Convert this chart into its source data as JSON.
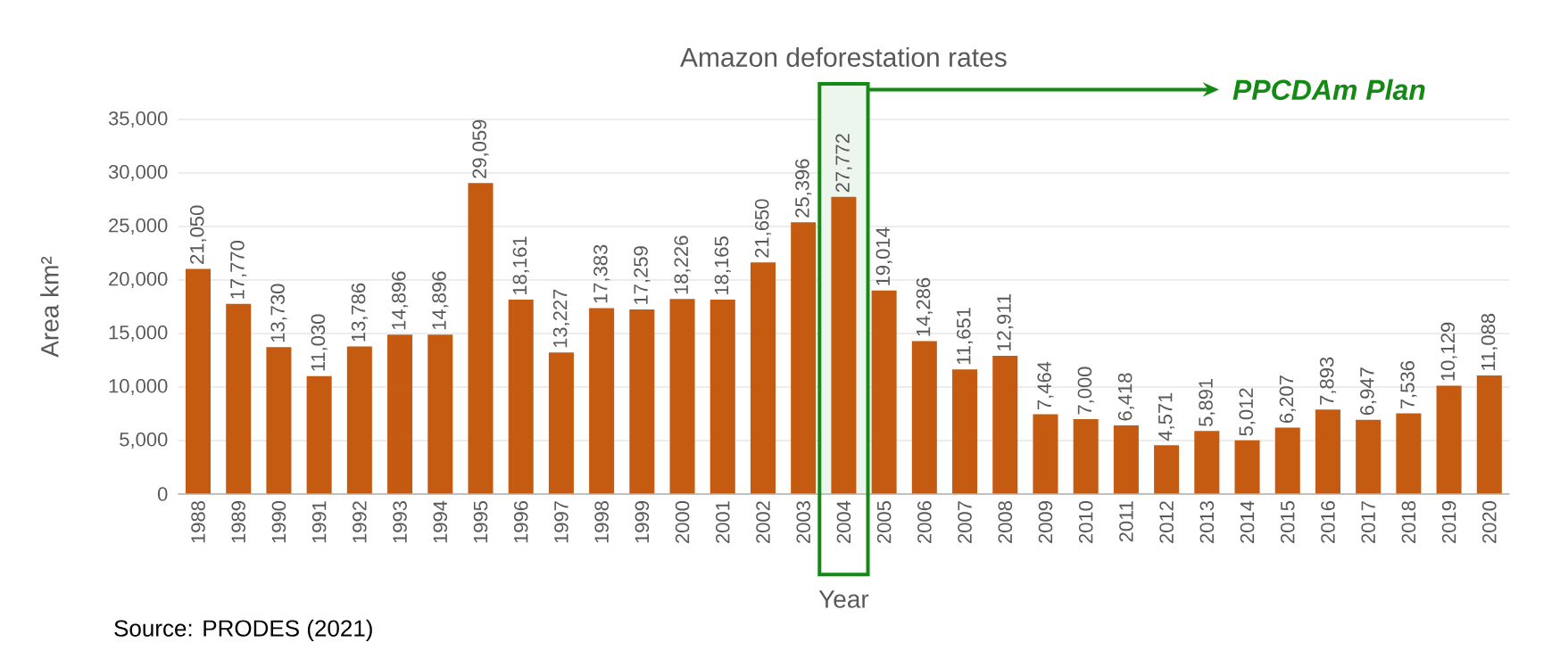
{
  "chart_data": {
    "type": "bar",
    "title": "Amazon deforestation rates",
    "xlabel": "Year",
    "ylabel": "Area km²",
    "categories": [
      "1988",
      "1989",
      "1990",
      "1991",
      "1992",
      "1993",
      "1994",
      "1995",
      "1996",
      "1997",
      "1998",
      "1999",
      "2000",
      "2001",
      "2002",
      "2003",
      "2004",
      "2005",
      "2006",
      "2007",
      "2008",
      "2009",
      "2010",
      "2011",
      "2012",
      "2013",
      "2014",
      "2015",
      "2016",
      "2017",
      "2018",
      "2019",
      "2020"
    ],
    "values": [
      21050,
      17770,
      13730,
      11030,
      13786,
      14896,
      14896,
      29059,
      18161,
      13227,
      17383,
      17259,
      18226,
      18165,
      21650,
      25396,
      27772,
      19014,
      14286,
      11651,
      12911,
      7464,
      7000,
      6418,
      4571,
      5891,
      5012,
      6207,
      7893,
      6947,
      7536,
      10129,
      11088
    ],
    "value_labels": [
      "21,050",
      "17,770",
      "13,730",
      "11,030",
      "13,786",
      "14,896",
      "14,896",
      "29,059",
      "18,161",
      "13,227",
      "17,383",
      "17,259",
      "18,226",
      "18,165",
      "21,650",
      "25,396",
      "27,772",
      "19,014",
      "14,286",
      "11,651",
      "12,911",
      "7,464",
      "7,000",
      "6,418",
      "4,571",
      "5,891",
      "5,012",
      "6,207",
      "7,893",
      "6,947",
      "7,536",
      "10,129",
      "11,088"
    ],
    "color": "#c55a11",
    "ylim": [
      0,
      35000
    ],
    "yticks": [
      0,
      {
        "value": 5000,
        "label": "5,000"
      },
      {
        "value": 10000,
        "label": "10,000"
      },
      {
        "value": 15000,
        "label": "15,000"
      },
      {
        "value": 20000,
        "label": "20,000"
      },
      {
        "value": 25000,
        "label": "25,000"
      },
      {
        "value": 30000,
        "label": "30,000"
      },
      {
        "value": 35000,
        "label": "35,000"
      }
    ],
    "grid": "y",
    "bands": [
      {
        "axis": "x",
        "from": "2004",
        "to": "2004",
        "label": "PPCDAm Plan"
      }
    ],
    "annotations": [
      "Source: PRODES (2021)"
    ]
  }
}
